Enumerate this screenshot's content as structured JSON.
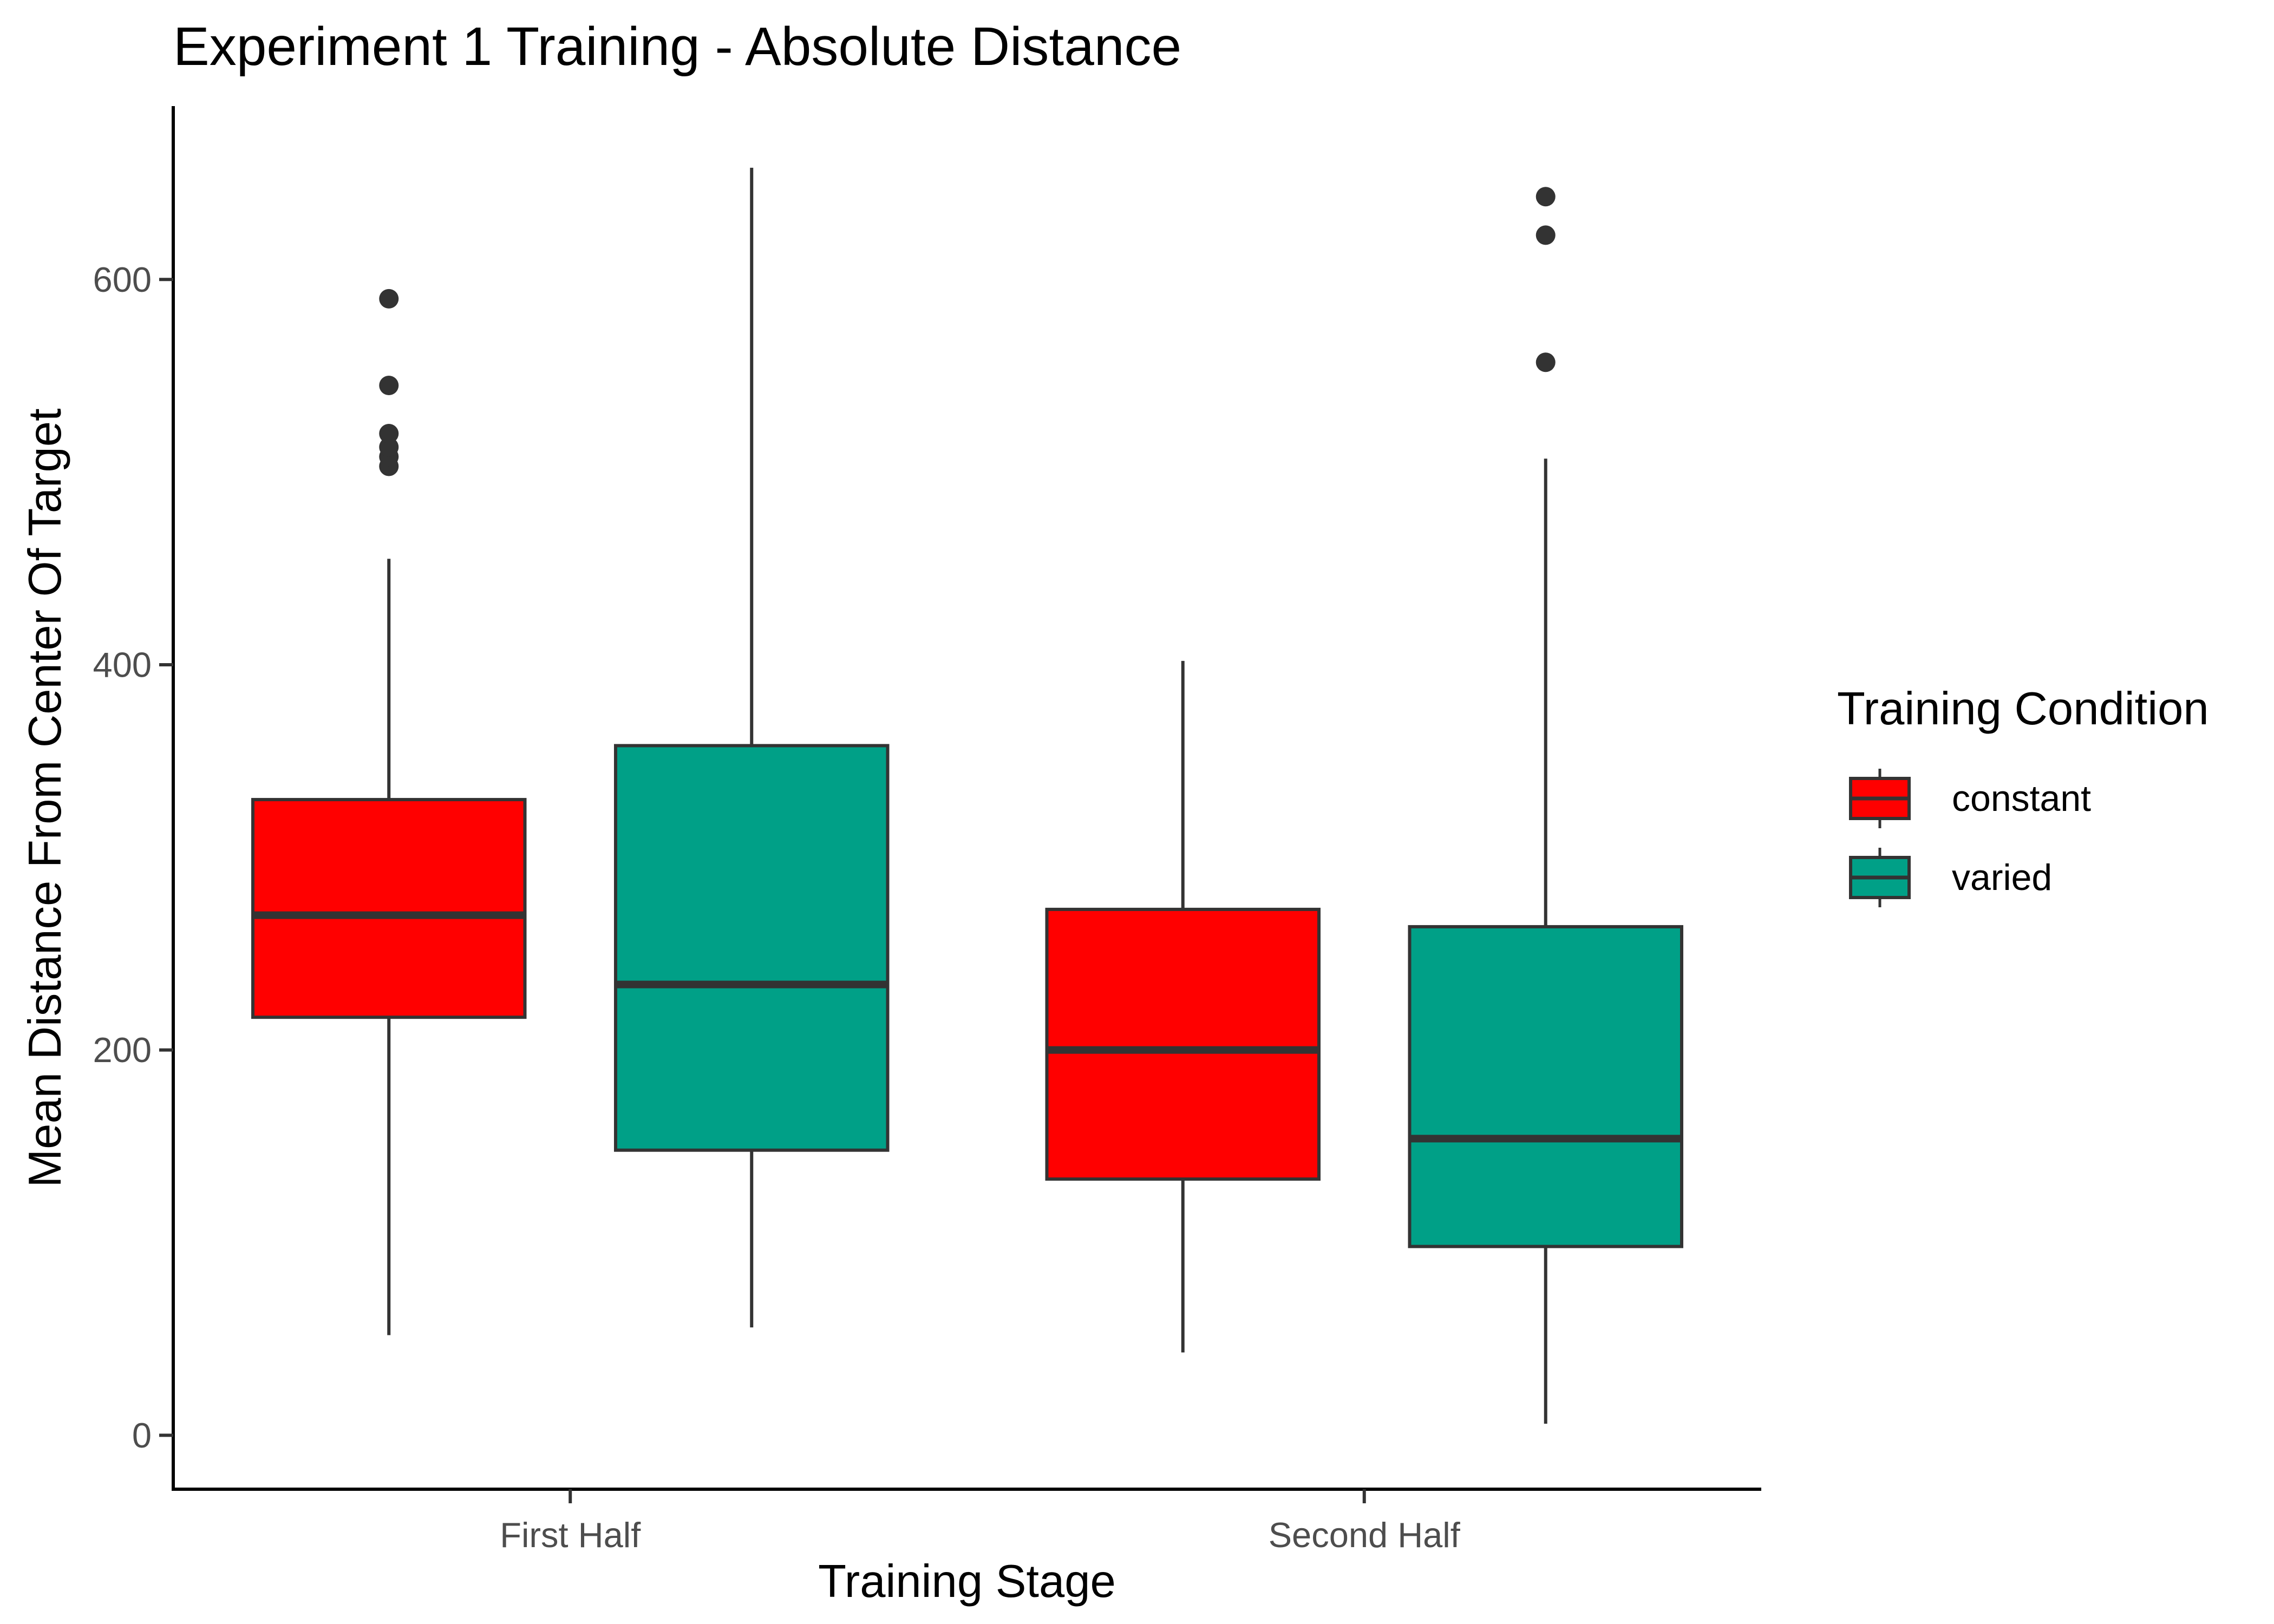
{
  "chart_data": {
    "type": "boxplot",
    "title": "Experiment 1 Training - Absolute Distance",
    "xlabel": "Training Stage",
    "ylabel": "Mean Distance From Center Of Target",
    "categories": [
      "First Half",
      "Second Half"
    ],
    "ylim": [
      -28,
      690
    ],
    "yticks": [
      0,
      200,
      400,
      600
    ],
    "grid": false,
    "legend": {
      "title": "Training Condition",
      "position": "right",
      "entries": [
        "constant",
        "varied"
      ]
    },
    "series": [
      {
        "name": "constant",
        "color": "#ff0000",
        "boxes": [
          {
            "category": "First Half",
            "lower_whisker": 52,
            "q1": 217,
            "median": 270,
            "q3": 330,
            "upper_whisker": 455,
            "outliers": [
              503,
              508,
              513,
              520,
              545,
              590
            ]
          },
          {
            "category": "Second Half",
            "lower_whisker": 43,
            "q1": 133,
            "median": 200,
            "q3": 273,
            "upper_whisker": 402,
            "outliers": []
          }
        ]
      },
      {
        "name": "varied",
        "color": "#00a087",
        "boxes": [
          {
            "category": "First Half",
            "lower_whisker": 56,
            "q1": 148,
            "median": 234,
            "q3": 358,
            "upper_whisker": 658,
            "outliers": []
          },
          {
            "category": "Second Half",
            "lower_whisker": 6,
            "q1": 98,
            "median": 154,
            "q3": 264,
            "upper_whisker": 507,
            "outliers": [
              557,
              623,
              643
            ]
          }
        ]
      }
    ]
  }
}
